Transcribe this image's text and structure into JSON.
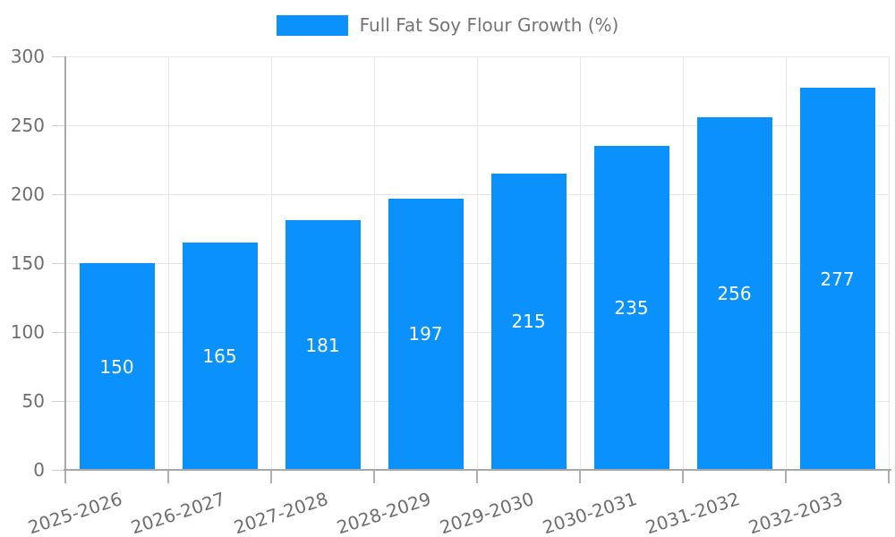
{
  "colors": {
    "bar": "#0a91fb",
    "grid": "#e8e8e8",
    "axis": "#a8a8a8",
    "y_tick_mark": "#d0d0d0",
    "x_tick_mark": "#b0b0b0",
    "tick_text": "#6e6e6e",
    "legend_text": "#757575",
    "value_label_text": "#ffffff",
    "background": "#ffffff"
  },
  "chart_data": {
    "type": "bar",
    "title": "",
    "xlabel": "",
    "ylabel": "",
    "categories": [
      "2025-2026",
      "2026-2027",
      "2027-2028",
      "2028-2029",
      "2029-2030",
      "2030-2031",
      "2031-2032",
      "2032-2033"
    ],
    "series": [
      {
        "name": "Full Fat Soy Flour Growth (%)",
        "values": [
          150,
          165,
          181,
          197,
          215,
          235,
          256,
          277
        ],
        "color": "#0a91fb"
      }
    ],
    "ylim": [
      0,
      300
    ],
    "yticks": [
      0,
      50,
      100,
      150,
      200,
      250,
      300
    ],
    "grid": true,
    "legend_position": "top",
    "value_labels_position": "inside-center",
    "x_label_rotation_deg": -18
  }
}
